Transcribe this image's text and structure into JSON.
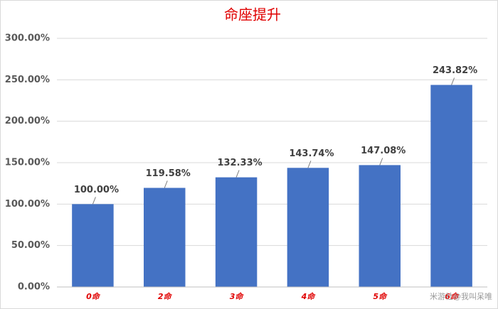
{
  "chart_data": {
    "type": "bar",
    "title": "命座提升",
    "categories": [
      "0命",
      "2命",
      "3命",
      "4命",
      "5命",
      "6命"
    ],
    "values": [
      100.0,
      119.58,
      132.33,
      143.74,
      147.08,
      243.82
    ],
    "value_labels": [
      "100.00%",
      "119.58%",
      "132.33%",
      "143.74%",
      "147.08%",
      "243.82%"
    ],
    "color": "#4472c4",
    "ylim": [
      0,
      300
    ],
    "yticks": [
      {
        "value": 0,
        "label": "0.00%"
      },
      {
        "value": 50,
        "label": "50.00%"
      },
      {
        "value": 100,
        "label": "100.00%"
      },
      {
        "value": 150,
        "label": "150.00%"
      },
      {
        "value": 200,
        "label": "200.00%"
      },
      {
        "value": 250,
        "label": "250.00%"
      },
      {
        "value": 300,
        "label": "300.00%"
      }
    ],
    "grid": true,
    "watermark": "米游社@我叫呆唯"
  }
}
